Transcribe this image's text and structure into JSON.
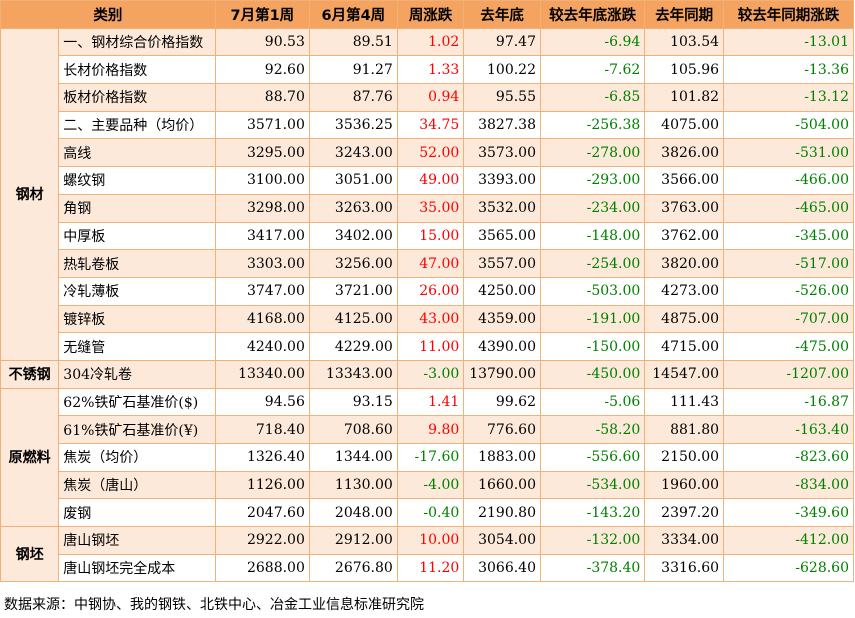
{
  "header": {
    "category": "类别",
    "c1": "7月第1周",
    "c2": "6月第4周",
    "c3": "周涨跌",
    "c4": "去年底",
    "c5": "较去年底涨跌",
    "c6": "去年同期",
    "c7": "较去年同期涨跌"
  },
  "groups": [
    {
      "label": "钢材",
      "rows": [
        {
          "name": "一、钢材综合价格指数",
          "v1": "90.53",
          "v2": "89.51",
          "wk": "1.02",
          "ly": "97.47",
          "vly": "-6.94",
          "lyp": "103.54",
          "vlyp": "-13.01"
        },
        {
          "name": "长材价格指数",
          "v1": "92.60",
          "v2": "91.27",
          "wk": "1.33",
          "ly": "100.22",
          "vly": "-7.62",
          "lyp": "105.96",
          "vlyp": "-13.36"
        },
        {
          "name": "板材价格指数",
          "v1": "88.70",
          "v2": "87.76",
          "wk": "0.94",
          "ly": "95.55",
          "vly": "-6.85",
          "lyp": "101.82",
          "vlyp": "-13.12"
        },
        {
          "name": "二、主要品种（均价）",
          "v1": "3571.00",
          "v2": "3536.25",
          "wk": "34.75",
          "ly": "3827.38",
          "vly": "-256.38",
          "lyp": "4075.00",
          "vlyp": "-504.00"
        },
        {
          "name": "高线",
          "v1": "3295.00",
          "v2": "3243.00",
          "wk": "52.00",
          "ly": "3573.00",
          "vly": "-278.00",
          "lyp": "3826.00",
          "vlyp": "-531.00"
        },
        {
          "name": "螺纹钢",
          "v1": "3100.00",
          "v2": "3051.00",
          "wk": "49.00",
          "ly": "3393.00",
          "vly": "-293.00",
          "lyp": "3566.00",
          "vlyp": "-466.00"
        },
        {
          "name": "角钢",
          "v1": "3298.00",
          "v2": "3263.00",
          "wk": "35.00",
          "ly": "3532.00",
          "vly": "-234.00",
          "lyp": "3763.00",
          "vlyp": "-465.00"
        },
        {
          "name": "中厚板",
          "v1": "3417.00",
          "v2": "3402.00",
          "wk": "15.00",
          "ly": "3565.00",
          "vly": "-148.00",
          "lyp": "3762.00",
          "vlyp": "-345.00"
        },
        {
          "name": "热轧卷板",
          "v1": "3303.00",
          "v2": "3256.00",
          "wk": "47.00",
          "ly": "3557.00",
          "vly": "-254.00",
          "lyp": "3820.00",
          "vlyp": "-517.00"
        },
        {
          "name": "冷轧薄板",
          "v1": "3747.00",
          "v2": "3721.00",
          "wk": "26.00",
          "ly": "4250.00",
          "vly": "-503.00",
          "lyp": "4273.00",
          "vlyp": "-526.00"
        },
        {
          "name": "镀锌板",
          "v1": "4168.00",
          "v2": "4125.00",
          "wk": "43.00",
          "ly": "4359.00",
          "vly": "-191.00",
          "lyp": "4875.00",
          "vlyp": "-707.00"
        },
        {
          "name": "无缝管",
          "v1": "4240.00",
          "v2": "4229.00",
          "wk": "11.00",
          "ly": "4390.00",
          "vly": "-150.00",
          "lyp": "4715.00",
          "vlyp": "-475.00"
        }
      ]
    },
    {
      "label": "不锈钢",
      "rows": [
        {
          "name": "304冷轧卷",
          "v1": "13340.00",
          "v2": "13343.00",
          "wk": "-3.00",
          "ly": "13790.00",
          "vly": "-450.00",
          "lyp": "14547.00",
          "vlyp": "-1207.00"
        }
      ]
    },
    {
      "label": "原燃料",
      "rows": [
        {
          "name": "62%铁矿石基准价($)",
          "v1": "94.56",
          "v2": "93.15",
          "wk": "1.41",
          "ly": "99.62",
          "vly": "-5.06",
          "lyp": "111.43",
          "vlyp": "-16.87"
        },
        {
          "name": "61%铁矿石基准价(¥)",
          "v1": "718.40",
          "v2": "708.60",
          "wk": "9.80",
          "ly": "776.60",
          "vly": "-58.20",
          "lyp": "881.80",
          "vlyp": "-163.40"
        },
        {
          "name": "焦炭（均价）",
          "v1": "1326.40",
          "v2": "1344.00",
          "wk": "-17.60",
          "ly": "1883.00",
          "vly": "-556.60",
          "lyp": "2150.00",
          "vlyp": "-823.60"
        },
        {
          "name": "焦炭（唐山）",
          "v1": "1126.00",
          "v2": "1130.00",
          "wk": "-4.00",
          "ly": "1660.00",
          "vly": "-534.00",
          "lyp": "1960.00",
          "vlyp": "-834.00"
        },
        {
          "name": "废钢",
          "v1": "2047.60",
          "v2": "2048.00",
          "wk": "-0.40",
          "ly": "2190.80",
          "vly": "-143.20",
          "lyp": "2397.20",
          "vlyp": "-349.60"
        }
      ]
    },
    {
      "label": "钢坯",
      "rows": [
        {
          "name": "唐山钢坯",
          "v1": "2922.00",
          "v2": "2912.00",
          "wk": "10.00",
          "ly": "3054.00",
          "vly": "-132.00",
          "lyp": "3334.00",
          "vlyp": "-412.00"
        },
        {
          "name": "唐山钢坯完全成本",
          "v1": "2688.00",
          "v2": "2676.80",
          "wk": "11.20",
          "ly": "3066.40",
          "vly": "-378.40",
          "lyp": "3316.60",
          "vlyp": "-628.60"
        }
      ]
    }
  ],
  "source": "数据来源：中钢协、我的钢铁、北铁中心、冶金工业信息标准研究院",
  "colors": {
    "header_bg": "#f4a460",
    "stripe_bg": "#fde9d9",
    "border": "#f2b179",
    "up": "#ff0000",
    "down": "#008000"
  }
}
